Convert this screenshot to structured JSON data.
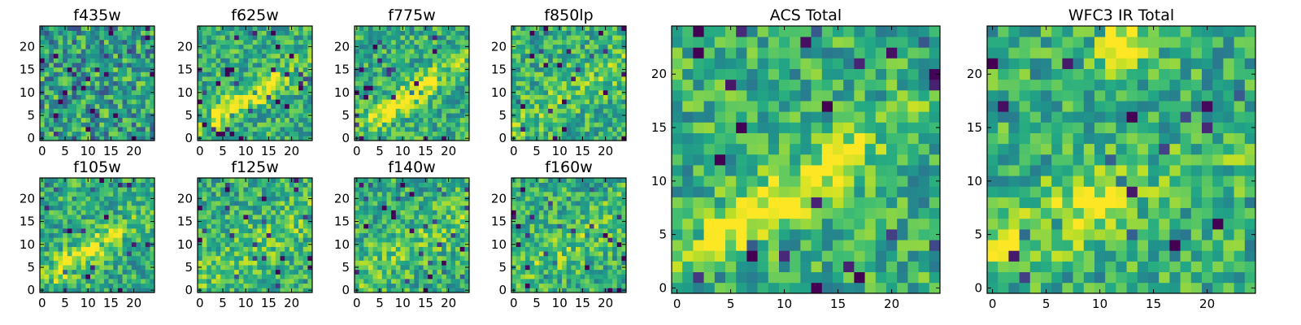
{
  "figure": {
    "background": "#ffffff",
    "colormap": "viridis",
    "grid": false
  },
  "chart_data": [
    {
      "type": "heatmap",
      "title": "f435w",
      "xlabel": "",
      "ylabel": "",
      "xlim": [
        -0.5,
        24.5
      ],
      "ylim": [
        -0.5,
        24.5
      ],
      "xticks": [
        "0",
        "5",
        "10",
        "15",
        "20"
      ],
      "yticks": [
        "0",
        "5",
        "10",
        "15",
        "20"
      ],
      "grid_size": [
        25,
        25
      ],
      "seed": 11,
      "feature": "noise"
    },
    {
      "type": "heatmap",
      "title": "f625w",
      "xlabel": "",
      "ylabel": "",
      "xlim": [
        -0.5,
        24.5
      ],
      "ylim": [
        -0.5,
        24.5
      ],
      "xticks": [
        "0",
        "5",
        "10",
        "15",
        "20"
      ],
      "yticks": [
        "0",
        "5",
        "10",
        "15",
        "20"
      ],
      "grid_size": [
        25,
        25
      ],
      "seed": 23,
      "feature": "diagonal"
    },
    {
      "type": "heatmap",
      "title": "f775w",
      "xlabel": "",
      "ylabel": "",
      "xlim": [
        -0.5,
        24.5
      ],
      "ylim": [
        -0.5,
        24.5
      ],
      "xticks": [
        "0",
        "5",
        "10",
        "15",
        "20"
      ],
      "yticks": [
        "0",
        "5",
        "10",
        "15",
        "20"
      ],
      "grid_size": [
        25,
        25
      ],
      "seed": 37,
      "feature": "diagonal"
    },
    {
      "type": "heatmap",
      "title": "f850lp",
      "xlabel": "",
      "ylabel": "",
      "xlim": [
        -0.5,
        24.5
      ],
      "ylim": [
        -0.5,
        24.5
      ],
      "xticks": [
        "0",
        "5",
        "10",
        "15",
        "20"
      ],
      "yticks": [
        "0",
        "5",
        "10",
        "15",
        "20"
      ],
      "grid_size": [
        25,
        25
      ],
      "seed": 41,
      "feature": "weak"
    },
    {
      "type": "heatmap",
      "title": "f105w",
      "xlabel": "",
      "ylabel": "",
      "xlim": [
        -0.5,
        24.5
      ],
      "ylim": [
        -0.5,
        24.5
      ],
      "xticks": [
        "0",
        "5",
        "10",
        "15",
        "20"
      ],
      "yticks": [
        "0",
        "5",
        "10",
        "15",
        "20"
      ],
      "grid_size": [
        25,
        25
      ],
      "seed": 53,
      "feature": "diagonal"
    },
    {
      "type": "heatmap",
      "title": "f125w",
      "xlabel": "",
      "ylabel": "",
      "xlim": [
        -0.5,
        24.5
      ],
      "ylim": [
        -0.5,
        24.5
      ],
      "xticks": [
        "0",
        "5",
        "10",
        "15",
        "20"
      ],
      "yticks": [
        "0",
        "5",
        "10",
        "15",
        "20"
      ],
      "grid_size": [
        25,
        25
      ],
      "seed": 61,
      "feature": "weak"
    },
    {
      "type": "heatmap",
      "title": "f140w",
      "xlabel": "",
      "ylabel": "",
      "xlim": [
        -0.5,
        24.5
      ],
      "ylim": [
        -0.5,
        24.5
      ],
      "xticks": [
        "0",
        "5",
        "10",
        "15",
        "20"
      ],
      "yticks": [
        "0",
        "5",
        "10",
        "15",
        "20"
      ],
      "grid_size": [
        25,
        25
      ],
      "seed": 71,
      "feature": "weak"
    },
    {
      "type": "heatmap",
      "title": "f160w",
      "xlabel": "",
      "ylabel": "",
      "xlim": [
        -0.5,
        24.5
      ],
      "ylim": [
        -0.5,
        24.5
      ],
      "xticks": [
        "0",
        "5",
        "10",
        "15",
        "20"
      ],
      "yticks": [
        "0",
        "5",
        "10",
        "15",
        "20"
      ],
      "grid_size": [
        25,
        25
      ],
      "seed": 83,
      "feature": "weak"
    },
    {
      "type": "heatmap",
      "title": "ACS Total",
      "xlabel": "",
      "ylabel": "",
      "xlim": [
        -0.5,
        24.5
      ],
      "ylim": [
        -0.5,
        24.5
      ],
      "xticks": [
        "0",
        "5",
        "10",
        "15",
        "20"
      ],
      "yticks": [
        "0",
        "5",
        "10",
        "15",
        "20"
      ],
      "grid_size": [
        25,
        25
      ],
      "seed": 97,
      "feature": "diagonal"
    },
    {
      "type": "heatmap",
      "title": "WFC3 IR Total",
      "xlabel": "",
      "ylabel": "",
      "xlim": [
        -0.5,
        24.5
      ],
      "ylim": [
        -0.5,
        24.5
      ],
      "xticks": [
        "0",
        "5",
        "10",
        "15",
        "20"
      ],
      "yticks": [
        "0",
        "5",
        "10",
        "15",
        "20"
      ],
      "grid_size": [
        25,
        25
      ],
      "seed": 109,
      "feature": "wfc3"
    }
  ]
}
